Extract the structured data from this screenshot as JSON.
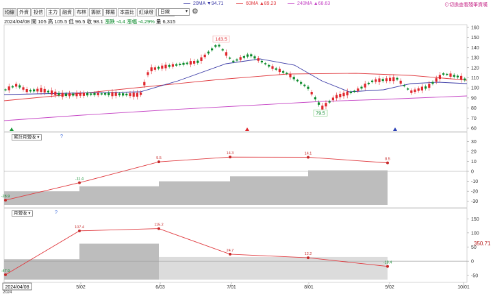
{
  "legend": {
    "ma20": {
      "label": "20MA",
      "value": "▼94.71",
      "color": "#3a3aa6"
    },
    "ma60": {
      "label": "60MA",
      "value": "▲89.23",
      "color": "#e0393e"
    },
    "ma240": {
      "label": "240MA",
      "value": "▲68.63",
      "color": "#c545c5"
    },
    "toggle": "⊙切換查看殘筆資嘆"
  },
  "tabs": [
    "均線",
    "外資",
    "投信",
    "主力",
    "融資",
    "布林",
    "籌餘",
    "擇羅",
    "本益比",
    "紅綠燈",
    "分價量"
  ],
  "select_value": "日線",
  "ohlc": {
    "date": "2024/04/08",
    "open": "開 105",
    "high": "高 105.5",
    "low": "低 96.5",
    "close": "收 98.1",
    "chg": "漲跌 -4.4",
    "pct": "漲幅 -4.29%",
    "vol": "量 6,315"
  },
  "main_axis": {
    "ticks": [
      "160",
      "150",
      "140",
      "130",
      "120",
      "110",
      "100",
      "90",
      "80",
      "70",
      "60"
    ]
  },
  "annotations": {
    "high": "143.5",
    "low": "79.5"
  },
  "sub1": {
    "select": "累計月營收",
    "help": "?",
    "ticks": [
      "30",
      "20",
      "10",
      "0",
      "-10",
      "-20",
      "-30"
    ]
  },
  "sub2": {
    "select": "月營收",
    "help": "?",
    "ticks": [
      "150",
      "100",
      "50",
      "0",
      "-50"
    ],
    "current_value": "350.71"
  },
  "x_axis": {
    "ticks": [
      "5/02",
      "6/03",
      "7/01",
      "8/01",
      "9/02",
      "10/01"
    ],
    "cursor_label": "2024/04/08",
    "year_label": "2024"
  },
  "chart_data": [
    {
      "type": "line",
      "name": "累計月營收",
      "x": [
        "2024/04",
        "2024/05",
        "2024/06",
        "2024/07",
        "2024/08",
        "2024/09"
      ],
      "values": [
        -28.9,
        -11.4,
        9.5,
        14.3,
        14.1,
        8.5
      ],
      "ylim": [
        -35,
        35
      ]
    },
    {
      "type": "line",
      "name": "月營收",
      "x": [
        "2024/04",
        "2024/05",
        "2024/06",
        "2024/07",
        "2024/08",
        "2024/09"
      ],
      "values": [
        -47.9,
        107.4,
        115.2,
        24.7,
        12.2,
        -18.4
      ],
      "ylim": [
        -70,
        170
      ]
    }
  ]
}
